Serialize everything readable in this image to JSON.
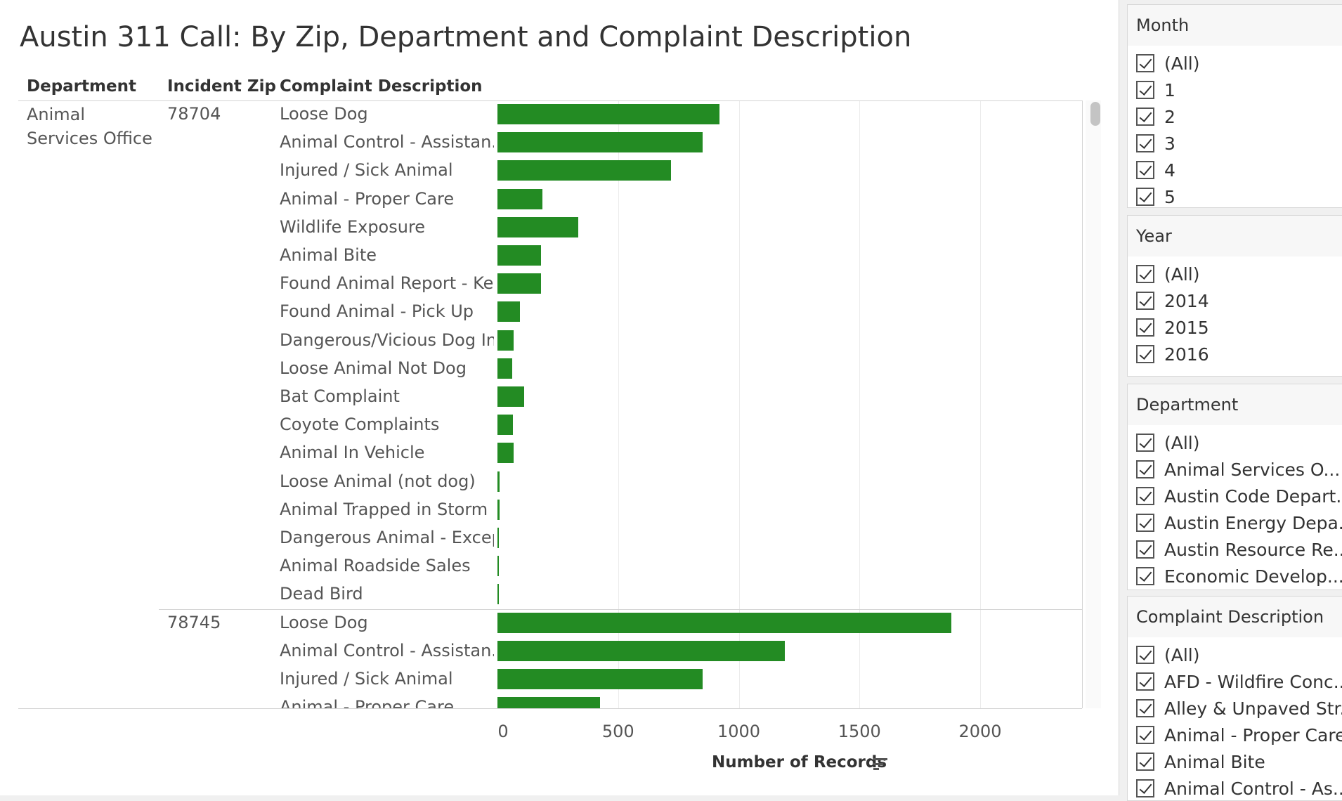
{
  "title": "Austin 311 Call: By Zip, Department and Complaint Description",
  "headers": {
    "department": "Department",
    "zip": "Incident Zip",
    "complaint": "Complaint Description"
  },
  "axis": {
    "title": "Number of Records",
    "ticks": [
      "0",
      "500",
      "1000",
      "1500",
      "2000"
    ]
  },
  "colors": {
    "bar": "#238b23"
  },
  "chart_data": {
    "type": "bar",
    "orientation": "horizontal",
    "xlabel": "Number of Records",
    "xlim": [
      0,
      2400
    ],
    "x_ticks": [
      0,
      500,
      1000,
      1500,
      2000
    ],
    "grid": true,
    "groups": [
      {
        "department": "Animal Services Office",
        "zip": "78704",
        "categories": [
          "Loose Dog",
          "Animal Control - Assistan..",
          "Injured / Sick Animal",
          "Animal - Proper Care",
          "Wildlife Exposure",
          "Animal Bite",
          "Found Animal Report - Ke..",
          "Found Animal - Pick Up",
          "Dangerous/Vicious Dog In..",
          "Loose Animal Not Dog",
          "Bat Complaint",
          "Coyote Complaints",
          "Animal In Vehicle",
          "Loose Animal (not dog)",
          "Animal Trapped in Storm ..",
          "Dangerous Animal - Excep..",
          "Animal Roadside Sales",
          "Dead Bird"
        ],
        "values": [
          920,
          850,
          720,
          185,
          335,
          180,
          180,
          92,
          68,
          62,
          110,
          64,
          68,
          10,
          9,
          4,
          3,
          3
        ]
      },
      {
        "department": "Animal Services Office",
        "zip": "78745",
        "categories": [
          "Loose Dog",
          "Animal Control - Assistan..",
          "Injured / Sick Animal",
          "Animal - Proper Care"
        ],
        "values": [
          1880,
          1192,
          850,
          425
        ]
      }
    ]
  },
  "filters": [
    {
      "title": "Month",
      "options": [
        "(All)",
        "1",
        "2",
        "3",
        "4",
        "5"
      ]
    },
    {
      "title": "Year",
      "options": [
        "(All)",
        "2014",
        "2015",
        "2016"
      ]
    },
    {
      "title": "Department",
      "options": [
        "(All)",
        "Animal Services O...",
        "Austin Code Depart...",
        "Austin Energy Depa...",
        "Austin Resource Re...",
        "Economic Develop..."
      ]
    },
    {
      "title": "Complaint Description",
      "options": [
        "(All)",
        "AFD - Wildfire Conc...",
        "Alley & Unpaved Str...",
        "Animal - Proper Care",
        "Animal Bite",
        "Animal Control - As..."
      ]
    }
  ]
}
